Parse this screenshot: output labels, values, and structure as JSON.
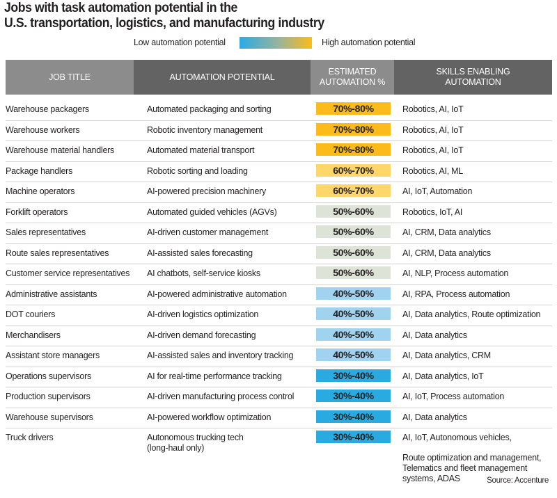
{
  "title": {
    "line1": "Jobs with task automation potential in the",
    "line2": "U.S. transportation, logistics, and manufacturing industry"
  },
  "legend": {
    "low_label": "Low automation potential",
    "high_label": "High automation potential",
    "gradient_colors": [
      "#29abe2",
      "#fbbb1a"
    ]
  },
  "source": "Source: Accenture",
  "chart_data": {
    "type": "table",
    "title": "Jobs with task automation potential in the U.S. transportation, logistics, and manufacturing industry",
    "columns": [
      "JOB TITLE",
      "AUTOMATION POTENTIAL",
      "ESTIMATED AUTOMATION %",
      "SKILLS ENABLING AUTOMATION"
    ],
    "band_colors": {
      "70%-80%": "#fbbb1a",
      "60%-70%": "#fdd76a",
      "50%-60%": "#dde3d6",
      "40%-50%": "#a0d3f0",
      "30%-40%": "#29abe2"
    },
    "rows": [
      {
        "job": "Warehouse packagers",
        "potential": "Automated packaging and sorting",
        "estimate": "70%-80%",
        "range": [
          70,
          80
        ],
        "skills": "Robotics, AI, IoT"
      },
      {
        "job": "Warehouse workers",
        "potential": "Robotic inventory management",
        "estimate": "70%-80%",
        "range": [
          70,
          80
        ],
        "skills": "Robotics, AI, IoT"
      },
      {
        "job": "Warehouse material handlers",
        "potential": "Automated material transport",
        "estimate": "70%-80%",
        "range": [
          70,
          80
        ],
        "skills": "Robotics, AI, IoT"
      },
      {
        "job": "Package handlers",
        "potential": "Robotic sorting and loading",
        "estimate": "60%-70%",
        "range": [
          60,
          70
        ],
        "skills": "Robotics, AI, ML"
      },
      {
        "job": "Machine operators",
        "potential": "AI-powered precision machinery",
        "estimate": "60%-70%",
        "range": [
          60,
          70
        ],
        "skills": "AI, IoT, Automation"
      },
      {
        "job": "Forklift operators",
        "potential": "Automated guided vehicles (AGVs)",
        "estimate": "50%-60%",
        "range": [
          50,
          60
        ],
        "skills": "Robotics, IoT, AI"
      },
      {
        "job": "Sales representatives",
        "potential": "AI-driven customer management",
        "estimate": "50%-60%",
        "range": [
          50,
          60
        ],
        "skills": "AI, CRM, Data analytics"
      },
      {
        "job": "Route sales representatives",
        "potential": "AI-assisted sales forecasting",
        "estimate": "50%-60%",
        "range": [
          50,
          60
        ],
        "skills": "AI, CRM, Data analytics"
      },
      {
        "job": "Customer service representatives",
        "potential": "AI chatbots, self-service kiosks",
        "estimate": "50%-60%",
        "range": [
          50,
          60
        ],
        "skills": "AI, NLP, Process automation"
      },
      {
        "job": "Administrative assistants",
        "potential": "AI-powered administrative automation",
        "estimate": "40%-50%",
        "range": [
          40,
          50
        ],
        "skills": "AI, RPA, Process automation"
      },
      {
        "job": "DOT couriers",
        "potential": "AI-driven logistics optimization",
        "estimate": "40%-50%",
        "range": [
          40,
          50
        ],
        "skills": "AI, Data analytics, Route optimization"
      },
      {
        "job": "Merchandisers",
        "potential": "AI-driven demand forecasting",
        "estimate": "40%-50%",
        "range": [
          40,
          50
        ],
        "skills": "AI, Data analytics"
      },
      {
        "job": "Assistant store managers",
        "potential": "AI-assisted sales and inventory tracking",
        "estimate": "40%-50%",
        "range": [
          40,
          50
        ],
        "skills": "AI, Data analytics, CRM"
      },
      {
        "job": "Operations supervisors",
        "potential": "AI for real-time performance tracking",
        "estimate": "30%-40%",
        "range": [
          30,
          40
        ],
        "skills": "AI, Data analytics, IoT"
      },
      {
        "job": "Production supervisors",
        "potential": "AI-driven manufacturing process control",
        "estimate": "30%-40%",
        "range": [
          30,
          40
        ],
        "skills": "AI, IoT, Process automation"
      },
      {
        "job": "Warehouse supervisors",
        "potential": "AI-powered workflow optimization",
        "estimate": "30%-40%",
        "range": [
          30,
          40
        ],
        "skills": "AI, Data analytics"
      },
      {
        "job": "Truck drivers",
        "potential": "Autonomous trucking tech (long-haul only)",
        "potential_line1": "Autonomous trucking tech",
        "potential_line2": "(long-haul only)",
        "estimate": "30%-40%",
        "range": [
          30,
          40
        ],
        "skills": "AI, IoT, Autonomous vehicles,",
        "skills_extra": "Route optimization and management, Telematics and fleet management systems, ADAS"
      }
    ]
  }
}
